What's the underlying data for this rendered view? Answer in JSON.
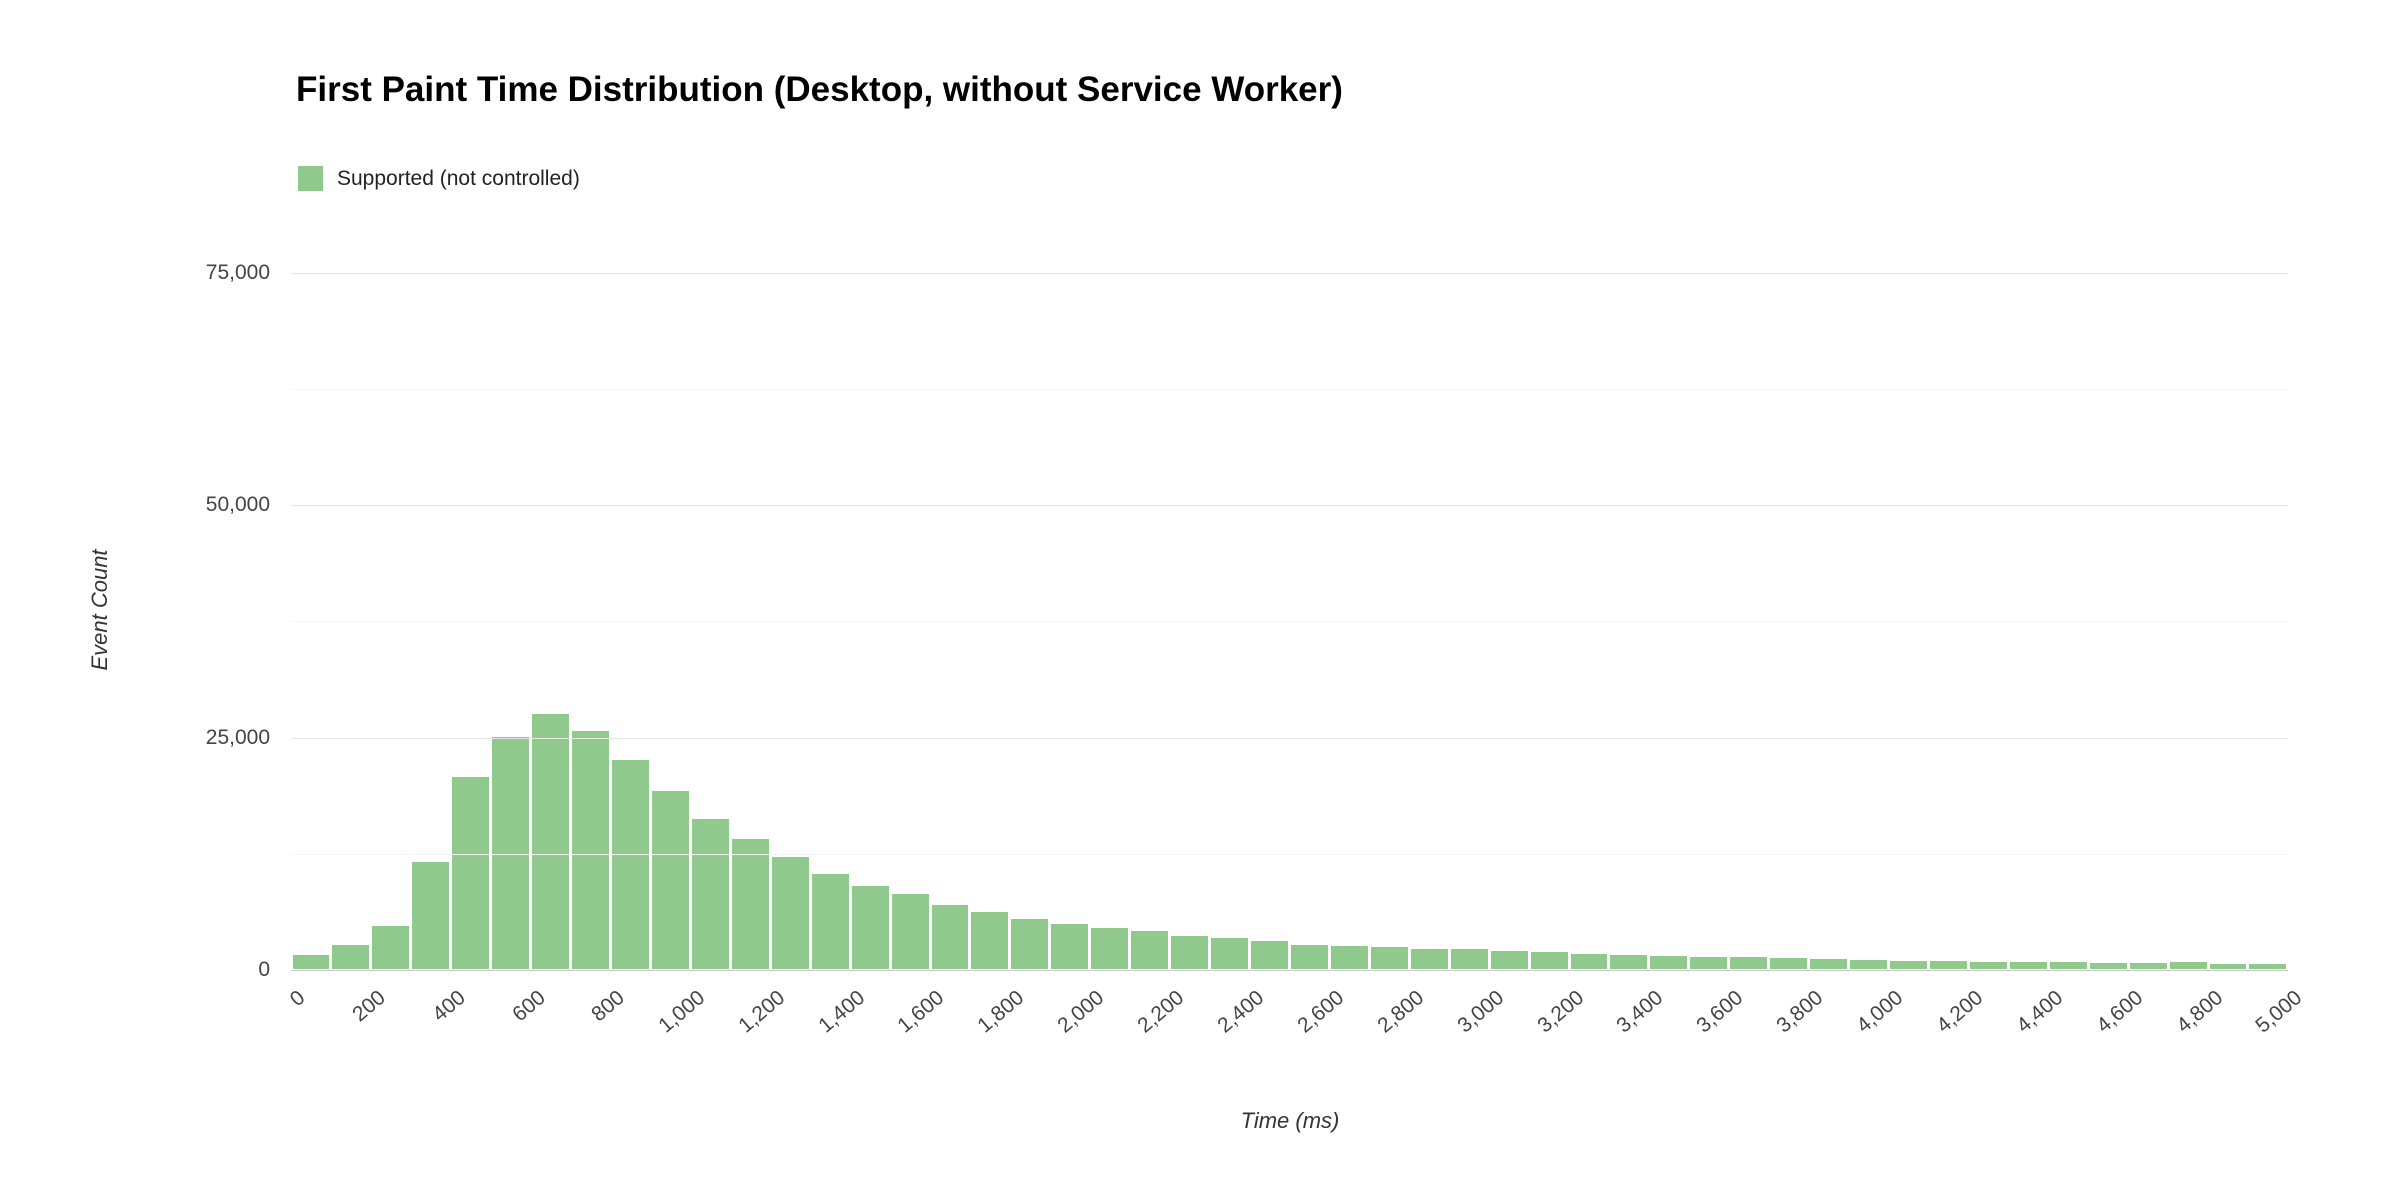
{
  "chart_data": {
    "type": "bar",
    "title": "First Paint Time Distribution (Desktop, without Service Worker)",
    "xlabel": "Time (ms)",
    "ylabel": "Event Count",
    "legend_position": "top-left",
    "grid": true,
    "bin_width_ms": 100,
    "x_range": [
      0,
      5000
    ],
    "ylim": [
      0,
      78500
    ],
    "y_ticks": [
      0,
      25000,
      50000,
      75000
    ],
    "y_tick_labels": [
      "0",
      "25,000",
      "50,000",
      "75,000"
    ],
    "y_minor_ticks": [
      12500,
      37500,
      62500
    ],
    "x_ticks": [
      0,
      200,
      400,
      600,
      800,
      1000,
      1200,
      1400,
      1600,
      1800,
      2000,
      2200,
      2400,
      2600,
      2800,
      3000,
      3200,
      3400,
      3600,
      3800,
      4000,
      4200,
      4400,
      4600,
      4800,
      5000
    ],
    "x_tick_labels": [
      "0",
      "200",
      "400",
      "600",
      "800",
      "1,000",
      "1,200",
      "1,400",
      "1,600",
      "1,800",
      "2,000",
      "2,200",
      "2,400",
      "2,600",
      "2,800",
      "3,000",
      "3,200",
      "3,400",
      "3,600",
      "3,800",
      "4,000",
      "4,200",
      "4,400",
      "4,600",
      "4,800",
      "5,000"
    ],
    "series": [
      {
        "name": "Supported (not controlled)",
        "color": "#8fc98b",
        "values": [
          1500,
          2600,
          4600,
          11500,
          20600,
          25000,
          27400,
          25600,
          22500,
          19100,
          16100,
          14000,
          12000,
          10200,
          8900,
          8100,
          6900,
          6100,
          5400,
          4800,
          4400,
          4100,
          3600,
          3300,
          3000,
          2600,
          2500,
          2400,
          2200,
          2100,
          1900,
          1800,
          1600,
          1500,
          1400,
          1300,
          1250,
          1150,
          1100,
          1000,
          900,
          850,
          800,
          750,
          750,
          700,
          650,
          750,
          550,
          500
        ]
      }
    ]
  },
  "colors": {
    "bar": "#8fc98b",
    "gridline_major": "#e6e6e6",
    "gridline_minor": "#f4f4f4",
    "baseline": "#c9c9c9",
    "tick_text": "#444444",
    "title_text": "#000000"
  }
}
